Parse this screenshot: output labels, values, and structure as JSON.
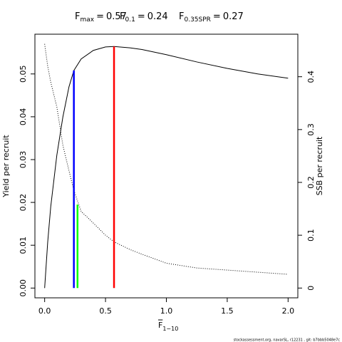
{
  "chart_data": {
    "type": "line",
    "title_parts": [
      {
        "label": "F",
        "sub": "max",
        "sign": "=",
        "value": 0.57
      },
      {
        "label": "F",
        "sub": "0.1",
        "sign": "=",
        "value": 0.24
      },
      {
        "label": "F",
        "sub": "0.35SPR",
        "sign": "=",
        "value": 0.27
      }
    ],
    "xlabel": {
      "label": "F",
      "sub": "1−10"
    },
    "ylabel": "Yield per recruit",
    "y2label": "SSB per recruit",
    "footer": "stockassessment.org, navarSL, r12231 , git: b7bbb5048e7c",
    "x": [
      0,
      0.025,
      0.05,
      0.1,
      0.15,
      0.2,
      0.24,
      0.3,
      0.4,
      0.5,
      0.57,
      0.7,
      0.8,
      1.0,
      1.25,
      1.5,
      1.75,
      2.0
    ],
    "series": [
      {
        "name": "Yield per recruit",
        "color": "#000000",
        "dash": "solid",
        "axis": "y",
        "values": [
          0,
          0.0107,
          0.019,
          0.031,
          0.04,
          0.047,
          0.0508,
          0.0535,
          0.0555,
          0.0563,
          0.0564,
          0.0561,
          0.0557,
          0.0545,
          0.0528,
          0.0513,
          0.05,
          0.049
        ]
      },
      {
        "name": "SSB per recruit",
        "color": "#000000",
        "dash": "dotted",
        "axis": "y2",
        "values": [
          0.462,
          0.42,
          0.39,
          0.343,
          0.27,
          0.222,
          0.185,
          0.145,
          0.123,
          0.1,
          0.0875,
          0.073,
          0.064,
          0.047,
          0.038,
          0.034,
          0.03,
          0.026
        ]
      }
    ],
    "reference_lines": [
      {
        "value": 0.57,
        "top": 0.0564,
        "axis": "y",
        "color": "#ff0000"
      },
      {
        "value": 0.24,
        "top": 0.0508,
        "axis": "y",
        "color": "#0000ff"
      },
      {
        "value": 0.27,
        "top": 0.158,
        "axis": "y2",
        "color": "#00ff00"
      }
    ],
    "xlim": [
      -0.08,
      2.08
    ],
    "xticks": [
      {
        "value": 0,
        "label": "0.0"
      },
      0.5,
      {
        "value": 1,
        "label": "1.0"
      },
      1.5,
      {
        "value": 2,
        "label": "2.0"
      }
    ],
    "ylim": [
      -0.00228,
      0.05928
    ],
    "yticks": [
      {
        "value": 0,
        "label": "0.00"
      },
      0.01,
      0.02,
      0.03,
      0.04,
      0.05
    ],
    "y2lim": [
      -0.0185,
      0.4805
    ],
    "y2ticks": [
      0,
      0.1,
      0.2,
      0.3,
      0.4
    ]
  }
}
